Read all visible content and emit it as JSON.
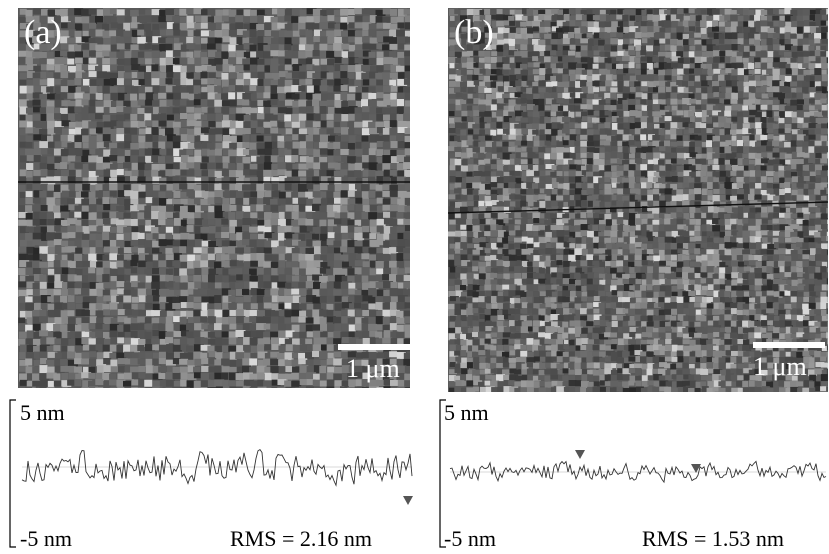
{
  "panels": [
    {
      "label": "(a)",
      "scale_bar": "1 μm",
      "profile": {
        "top_label": "5 nm",
        "bottom_label": "-5 nm",
        "rms": "RMS = 2.16 nm"
      }
    },
    {
      "label": "(b)",
      "scale_bar": "1 μm",
      "profile": {
        "top_label": "5 nm",
        "bottom_label": "-5 nm",
        "rms": "RMS = 1.53 nm"
      }
    }
  ],
  "colors": {
    "image_base": "#5a5a5a",
    "trace": "#333333",
    "marker": "#555555",
    "text": "#000000"
  }
}
